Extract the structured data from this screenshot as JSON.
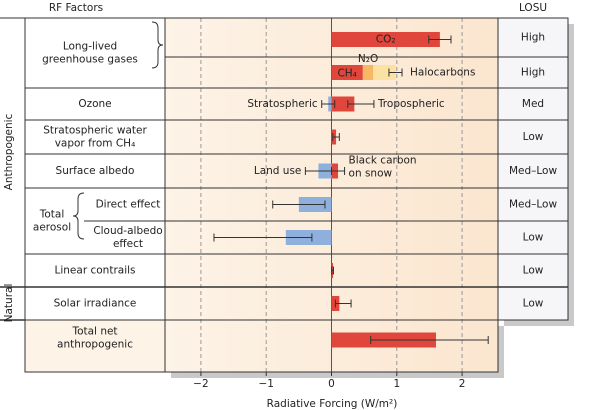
{
  "chart_data": {
    "type": "forcing-bar",
    "header_left": "RF Factors",
    "header_right": "LOSU",
    "xlabel": "Radiative Forcing (W/m²)",
    "xlim": [
      -2.55,
      2.55
    ],
    "xticks": [
      {
        "value": -2,
        "label": "−2"
      },
      {
        "value": -1,
        "label": "−1"
      },
      0,
      1,
      2
    ],
    "grid": true,
    "sections": [
      "Anthropogenic",
      "Natural"
    ],
    "aerosol_label": [
      "Total",
      "aerosol"
    ],
    "rows": [
      {
        "label": [
          "Long-lived",
          "greenhouse gases"
        ],
        "losu": "High",
        "stacked": false,
        "bars": [
          {
            "name": "CO₂",
            "value": 1.66,
            "color": "#e0463b"
          }
        ],
        "errors": [
          {
            "low": 1.49,
            "high": 1.83
          }
        ]
      },
      {
        "losu": "High",
        "stacked": true,
        "bars": [
          {
            "name": "CH₄",
            "value": 0.48,
            "color": "#e0463b"
          },
          {
            "name": "N₂O",
            "value": 0.16,
            "color": "#f7b765"
          },
          {
            "name": "Halocarbons",
            "value": 0.34,
            "color": "#fbe2a2"
          }
        ],
        "errors": [
          {
            "low": 0.88,
            "high": 1.08
          }
        ]
      },
      {
        "label": [
          "Ozone"
        ],
        "losu": "Med",
        "stacked": false,
        "bars": [
          {
            "name": "Stratospheric",
            "value": -0.05,
            "color": "#8fb0dc"
          },
          {
            "name": "Tropospheric",
            "value": 0.35,
            "color": "#e0463b"
          }
        ],
        "errors": [
          {
            "low": -0.15,
            "high": 0.05
          },
          {
            "low": 0.25,
            "high": 0.65
          }
        ]
      },
      {
        "label": [
          "Stratospheric water",
          "vapor from CH₄"
        ],
        "losu": "Low",
        "stacked": false,
        "bars": [
          {
            "value": 0.07,
            "color": "#e0463b"
          }
        ],
        "errors": [
          {
            "low": 0.02,
            "high": 0.12
          }
        ]
      },
      {
        "label": [
          "Surface albedo"
        ],
        "losu": "Med–Low",
        "stacked": false,
        "bars": [
          {
            "name": "Land use",
            "value": -0.2,
            "color": "#8fb0dc"
          },
          {
            "name": "Black carbon\non snow",
            "value": 0.1,
            "color": "#e0463b"
          }
        ],
        "errors": [
          {
            "low": -0.4,
            "high": 0.0
          },
          {
            "low": 0.0,
            "high": 0.2
          }
        ]
      },
      {
        "label": [
          "Direct effect"
        ],
        "losu": "Med–Low",
        "stacked": false,
        "bars": [
          {
            "value": -0.5,
            "color": "#8fb0dc"
          }
        ],
        "errors": [
          {
            "low": -0.9,
            "high": -0.1
          }
        ]
      },
      {
        "label": [
          "Cloud-albedo",
          "effect"
        ],
        "losu": "Low",
        "stacked": false,
        "bars": [
          {
            "value": -0.7,
            "color": "#8fb0dc"
          }
        ],
        "errors": [
          {
            "low": -1.8,
            "high": -0.3
          }
        ]
      },
      {
        "label": [
          "Linear contrails"
        ],
        "losu": "Low",
        "stacked": false,
        "bars": [
          {
            "value": 0.01,
            "color": "#e0463b"
          }
        ],
        "errors": [
          {
            "low": 0.003,
            "high": 0.03
          }
        ]
      },
      {
        "label": [
          "Solar irradiance"
        ],
        "losu": "Low",
        "stacked": false,
        "bars": [
          {
            "value": 0.12,
            "color": "#e0463b"
          }
        ],
        "errors": [
          {
            "low": 0.06,
            "high": 0.3
          }
        ]
      },
      {
        "label": [
          "Total net",
          "anthropogenic"
        ],
        "stacked": false,
        "bars": [
          {
            "value": 1.6,
            "color": "#e0463b"
          }
        ],
        "errors": [
          {
            "low": 0.6,
            "high": 2.4
          }
        ]
      }
    ]
  }
}
